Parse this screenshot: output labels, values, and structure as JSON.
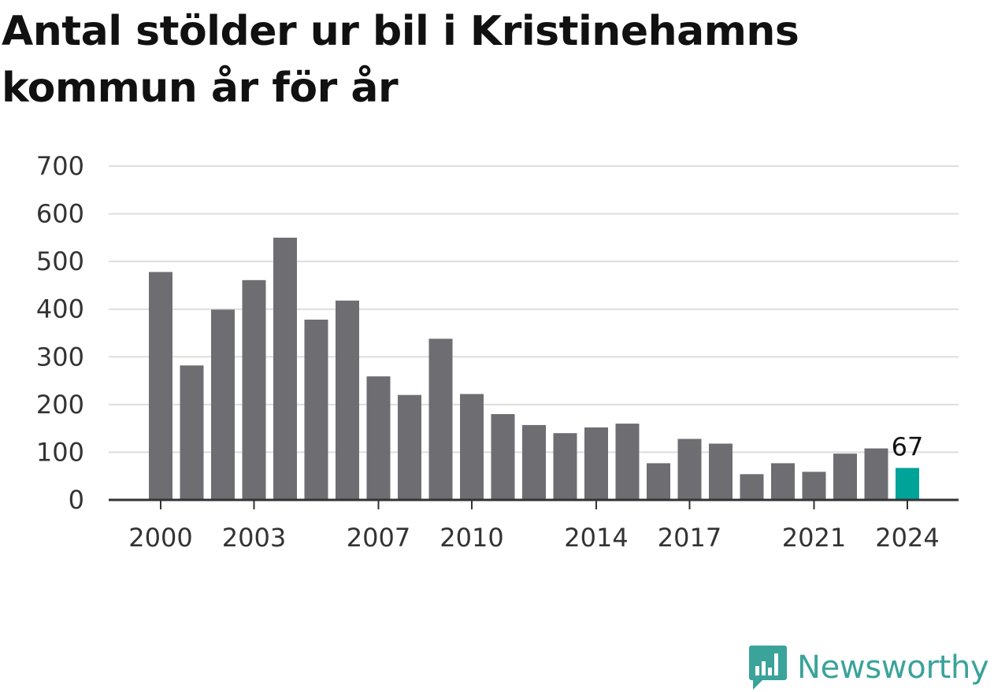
{
  "chart_data": {
    "type": "bar",
    "title": "Antal stölder ur bil i Kristinehamns kommun år för år",
    "x": [
      2000,
      2001,
      2002,
      2003,
      2004,
      2005,
      2006,
      2007,
      2008,
      2009,
      2010,
      2011,
      2012,
      2013,
      2014,
      2015,
      2016,
      2017,
      2018,
      2019,
      2020,
      2021,
      2022,
      2023,
      2024
    ],
    "values": [
      478,
      282,
      399,
      461,
      550,
      378,
      418,
      259,
      220,
      338,
      222,
      180,
      157,
      140,
      152,
      160,
      77,
      128,
      118,
      54,
      77,
      59,
      97,
      108,
      67
    ],
    "x_tick_labels": [
      "2000",
      "2003",
      "2007",
      "2010",
      "2014",
      "2017",
      "2021",
      "2024"
    ],
    "y_tick_labels": [
      "0",
      "100",
      "200",
      "300",
      "400",
      "500",
      "600",
      "700"
    ],
    "ylim": [
      0,
      700
    ],
    "highlight": {
      "year": 2024,
      "label": "67",
      "color": "#00a398"
    },
    "bar_color": "#6e6d72",
    "grid": true,
    "xlabel": "",
    "ylabel": ""
  },
  "brand": {
    "name": "Newsworthy",
    "logo_icon": "bar-chart-speech-bubble-icon",
    "color": "#3aa39a"
  }
}
